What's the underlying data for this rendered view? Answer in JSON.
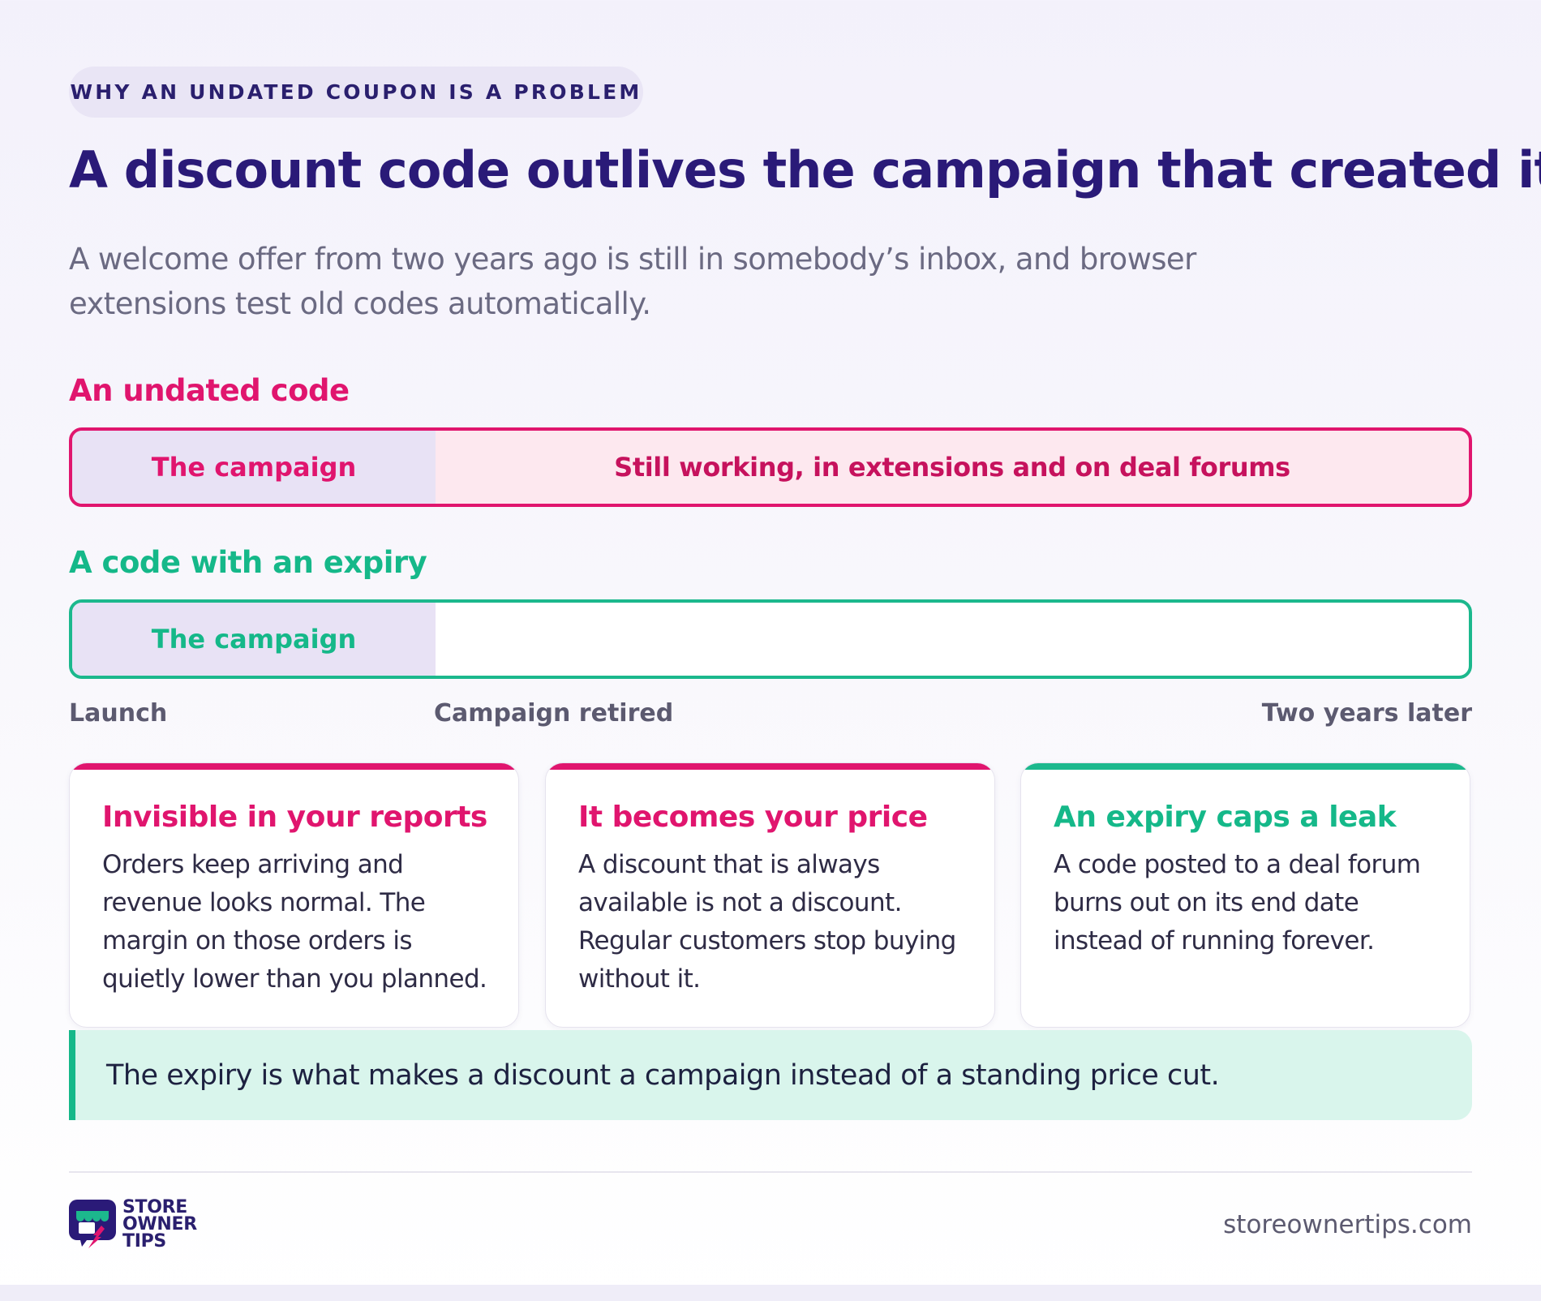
{
  "eyebrow": "WHY AN UNDATED COUPON IS A PROBLEM",
  "title": "A discount code outlives the campaign that created it",
  "subtitle": "A welcome offer from two years ago is still in somebody’s inbox, and browser extensions test old codes automatically.",
  "rows": {
    "undated": {
      "label": "An undated code",
      "campaign": "The campaign",
      "after": "Still working, in extensions and on deal forums"
    },
    "expiry": {
      "label": "A code with an expiry",
      "campaign": "The campaign"
    }
  },
  "timeline": {
    "start": "Launch",
    "middle": "Campaign retired",
    "end": "Two years later"
  },
  "cards": [
    {
      "title": "Invisible in your reports",
      "body": "Orders keep arriving and revenue looks normal. The margin on those orders is quietly lower than you planned."
    },
    {
      "title": "It becomes your price",
      "body": "A discount that is always available is not a discount. Regular customers stop buying without it."
    },
    {
      "title": "An expiry caps a leak",
      "body": "A code posted to a deal forum burns out on its end date instead of running forever."
    }
  ],
  "callout": "The expiry is what makes a discount a campaign instead of a standing price cut.",
  "footer": {
    "logo_lines": [
      "STORE",
      "OWNER",
      "TIPS"
    ],
    "site": "storeownertips.com"
  },
  "colors": {
    "accent_pink": "#e0156e",
    "accent_green": "#15b889",
    "title_navy": "#2a1a78"
  }
}
